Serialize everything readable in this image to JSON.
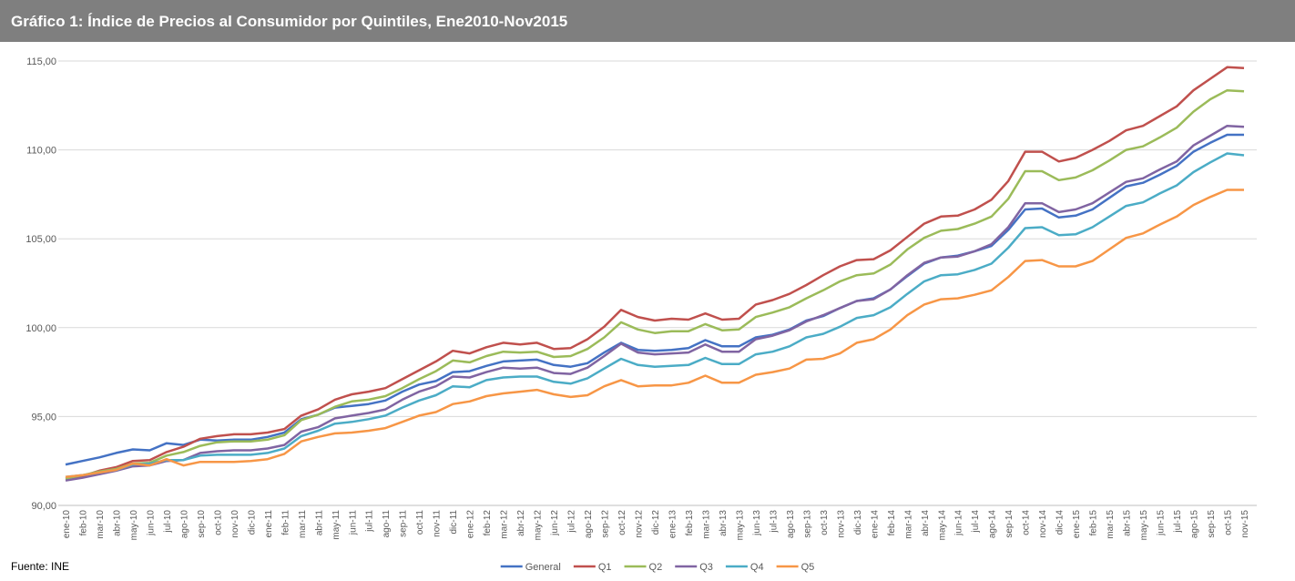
{
  "chart_data": {
    "type": "line",
    "title": "Gráfico 1: Índice de Precios al Consumidor por Quintiles, Ene2010-Nov2015",
    "source": "Fuente: INE",
    "categories": [
      "ene-10",
      "feb-10",
      "mar-10",
      "abr-10",
      "may-10",
      "jun-10",
      "jul-10",
      "ago-10",
      "sep-10",
      "oct-10",
      "nov-10",
      "dic-10",
      "ene-11",
      "feb-11",
      "mar-11",
      "abr-11",
      "may-11",
      "jun-11",
      "jul-11",
      "ago-11",
      "sep-11",
      "oct-11",
      "nov-11",
      "dic-11",
      "ene-12",
      "feb-12",
      "mar-12",
      "abr-12",
      "may-12",
      "jun-12",
      "jul-12",
      "ago-12",
      "sep-12",
      "oct-12",
      "nov-12",
      "dic-12",
      "ene-13",
      "feb-13",
      "mar-13",
      "abr-13",
      "may-13",
      "jun-13",
      "jul-13",
      "ago-13",
      "sep-13",
      "oct-13",
      "nov-13",
      "dic-13",
      "ene-14",
      "feb-14",
      "mar-14",
      "abr-14",
      "may-14",
      "jun-14",
      "jul-14",
      "ago-14",
      "sep-14",
      "oct-14",
      "nov-14",
      "dic-14",
      "ene-15",
      "feb-15",
      "mar-15",
      "abr-15",
      "may-15",
      "jun-15",
      "jul-15",
      "ago-15",
      "sep-15",
      "oct-15",
      "nov-15"
    ],
    "series": [
      {
        "name": "General",
        "color": "#4472c4",
        "values": [
          92.3,
          92.5,
          92.7,
          92.95,
          93.15,
          93.1,
          93.5,
          93.4,
          93.7,
          93.65,
          93.7,
          93.7,
          93.85,
          94.1,
          94.85,
          95.1,
          95.5,
          95.6,
          95.7,
          95.9,
          96.4,
          96.8,
          97.0,
          97.5,
          97.55,
          97.85,
          98.1,
          98.15,
          98.2,
          97.9,
          97.8,
          98.0,
          98.6,
          99.15,
          98.75,
          98.7,
          98.75,
          98.85,
          99.3,
          98.95,
          98.95,
          99.45,
          99.6,
          99.9,
          100.4,
          100.65,
          101.1,
          101.5,
          101.65,
          102.15,
          102.9,
          103.6,
          103.95,
          104.05,
          104.3,
          104.6,
          105.5,
          106.65,
          106.7,
          106.2,
          106.3,
          106.65,
          107.3,
          107.95,
          108.15,
          108.6,
          109.1,
          109.9,
          110.4,
          110.85,
          110.85
        ]
      },
      {
        "name": "Q1",
        "color": "#c0504d",
        "values": [
          91.5,
          91.65,
          91.95,
          92.15,
          92.5,
          92.55,
          93.0,
          93.3,
          93.75,
          93.9,
          94.0,
          94.0,
          94.1,
          94.3,
          95.05,
          95.4,
          95.95,
          96.25,
          96.4,
          96.6,
          97.1,
          97.6,
          98.1,
          98.7,
          98.55,
          98.9,
          99.15,
          99.05,
          99.15,
          98.8,
          98.85,
          99.35,
          100.05,
          101.0,
          100.6,
          100.4,
          100.5,
          100.45,
          100.8,
          100.45,
          100.5,
          101.3,
          101.55,
          101.9,
          102.4,
          102.95,
          103.45,
          103.8,
          103.85,
          104.35,
          105.1,
          105.85,
          106.25,
          106.3,
          106.65,
          107.2,
          108.25,
          109.9,
          109.9,
          109.35,
          109.55,
          110.0,
          110.5,
          111.1,
          111.35,
          111.9,
          112.45,
          113.35,
          114.0,
          114.65,
          114.6
        ]
      },
      {
        "name": "Q2",
        "color": "#9bbb59",
        "values": [
          91.5,
          91.7,
          91.9,
          92.05,
          92.35,
          92.4,
          92.8,
          93.0,
          93.35,
          93.55,
          93.6,
          93.6,
          93.7,
          93.95,
          94.8,
          95.1,
          95.55,
          95.85,
          95.95,
          96.15,
          96.6,
          97.1,
          97.55,
          98.15,
          98.05,
          98.4,
          98.65,
          98.6,
          98.65,
          98.35,
          98.4,
          98.8,
          99.45,
          100.3,
          99.9,
          99.7,
          99.8,
          99.8,
          100.2,
          99.85,
          99.9,
          100.6,
          100.85,
          101.15,
          101.65,
          102.1,
          102.6,
          102.95,
          103.05,
          103.55,
          104.4,
          105.05,
          105.45,
          105.55,
          105.85,
          106.25,
          107.25,
          108.8,
          108.8,
          108.3,
          108.45,
          108.85,
          109.4,
          110.0,
          110.2,
          110.7,
          111.25,
          112.15,
          112.85,
          113.35,
          113.3
        ]
      },
      {
        "name": "Q3",
        "color": "#8064a2",
        "values": [
          91.4,
          91.55,
          91.75,
          91.95,
          92.2,
          92.25,
          92.5,
          92.55,
          92.95,
          93.05,
          93.1,
          93.1,
          93.2,
          93.4,
          94.15,
          94.4,
          94.9,
          95.05,
          95.2,
          95.4,
          95.95,
          96.4,
          96.7,
          97.25,
          97.2,
          97.5,
          97.75,
          97.7,
          97.75,
          97.45,
          97.4,
          97.75,
          98.4,
          99.1,
          98.6,
          98.5,
          98.55,
          98.6,
          99.05,
          98.65,
          98.65,
          99.35,
          99.55,
          99.85,
          100.35,
          100.7,
          101.1,
          101.5,
          101.6,
          102.15,
          102.95,
          103.65,
          103.95,
          104.0,
          104.3,
          104.7,
          105.65,
          107.0,
          107.0,
          106.5,
          106.65,
          107.0,
          107.6,
          108.2,
          108.4,
          108.9,
          109.35,
          110.25,
          110.8,
          111.35,
          111.3
        ]
      },
      {
        "name": "Q4",
        "color": "#4bacc6",
        "values": [
          91.6,
          91.7,
          91.85,
          92.0,
          92.3,
          92.35,
          92.55,
          92.55,
          92.8,
          92.85,
          92.85,
          92.85,
          92.95,
          93.2,
          93.9,
          94.2,
          94.6,
          94.7,
          94.85,
          95.05,
          95.5,
          95.9,
          96.2,
          96.7,
          96.65,
          97.05,
          97.2,
          97.25,
          97.25,
          96.95,
          96.85,
          97.15,
          97.7,
          98.25,
          97.9,
          97.8,
          97.85,
          97.9,
          98.3,
          97.95,
          97.95,
          98.5,
          98.65,
          98.95,
          99.45,
          99.65,
          100.05,
          100.55,
          100.7,
          101.15,
          101.9,
          102.6,
          102.95,
          103.0,
          103.25,
          103.6,
          104.5,
          105.6,
          105.65,
          105.2,
          105.25,
          105.65,
          106.25,
          106.85,
          107.05,
          107.55,
          108.0,
          108.75,
          109.3,
          109.8,
          109.7
        ]
      },
      {
        "name": "Q5",
        "color": "#f79646",
        "values": [
          91.6,
          91.7,
          91.85,
          92.0,
          92.35,
          92.25,
          92.6,
          92.25,
          92.45,
          92.45,
          92.45,
          92.5,
          92.6,
          92.9,
          93.6,
          93.85,
          94.05,
          94.1,
          94.2,
          94.35,
          94.7,
          95.05,
          95.25,
          95.7,
          95.85,
          96.15,
          96.3,
          96.4,
          96.5,
          96.25,
          96.1,
          96.2,
          96.7,
          97.05,
          96.7,
          96.75,
          96.75,
          96.9,
          97.3,
          96.9,
          96.9,
          97.35,
          97.5,
          97.7,
          98.2,
          98.25,
          98.55,
          99.15,
          99.35,
          99.9,
          100.7,
          101.3,
          101.6,
          101.65,
          101.85,
          102.1,
          102.85,
          103.75,
          103.8,
          103.45,
          103.45,
          103.75,
          104.4,
          105.05,
          105.3,
          105.8,
          106.25,
          106.9,
          107.35,
          107.75,
          107.75
        ]
      }
    ],
    "ylim": [
      90,
      115
    ],
    "yticks": [
      {
        "value": 90,
        "label": "90,00"
      },
      {
        "value": 95,
        "label": "95,00"
      },
      {
        "value": 100,
        "label": "100,00"
      },
      {
        "value": 105,
        "label": "105,00"
      },
      {
        "value": 110,
        "label": "110,00"
      },
      {
        "value": 115,
        "label": "115,00"
      }
    ],
    "grid": true,
    "legend": "bottom"
  }
}
